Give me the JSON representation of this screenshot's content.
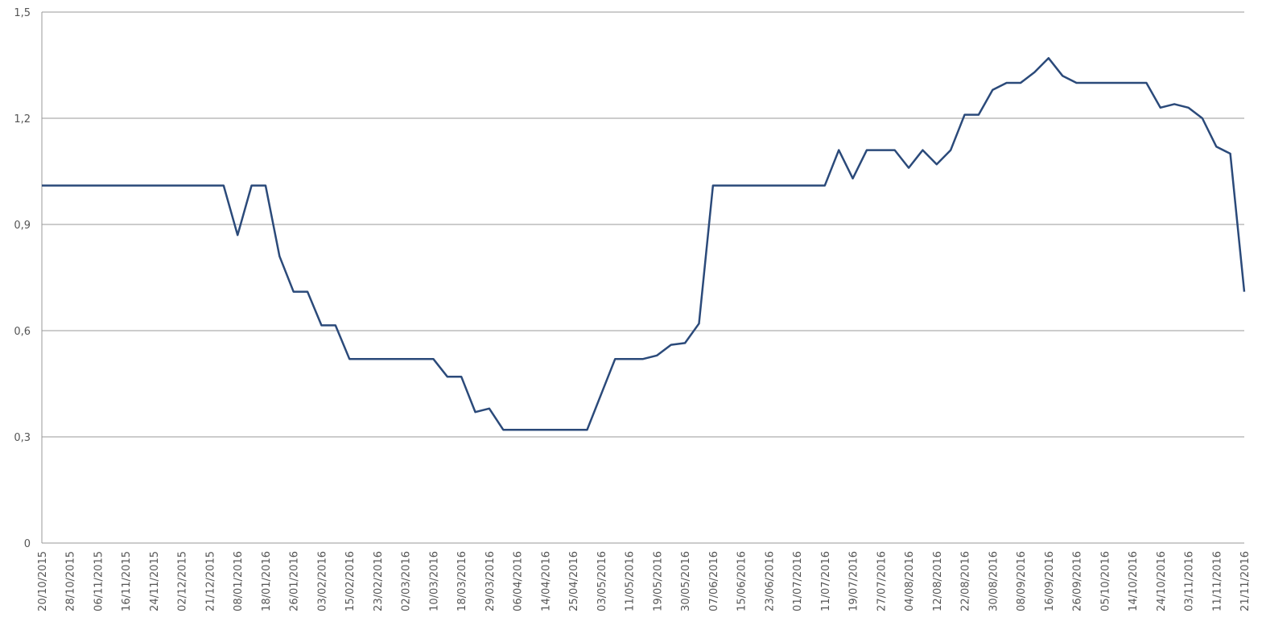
{
  "chart_data": {
    "type": "line",
    "categories": [
      "20/10/2015",
      null,
      "28/10/2015",
      null,
      "06/11/2015",
      null,
      "16/11/2015",
      null,
      "24/11/2015",
      null,
      "02/12/2015",
      null,
      "21/12/2015",
      null,
      "08/01/2016",
      null,
      "18/01/2016",
      null,
      "26/01/2016",
      null,
      "03/02/2016",
      null,
      "15/02/2016",
      null,
      "23/02/2016",
      null,
      "02/03/2016",
      null,
      "10/03/2016",
      null,
      "18/03/2016",
      null,
      "29/03/2016",
      null,
      "06/04/2016",
      null,
      "14/04/2016",
      null,
      "25/04/2016",
      null,
      "03/05/2016",
      null,
      "11/05/2016",
      null,
      "19/05/2016",
      null,
      "30/05/2016",
      null,
      "07/06/2016",
      null,
      "15/06/2016",
      null,
      "23/06/2016",
      null,
      "01/07/2016",
      null,
      "11/07/2016",
      null,
      "19/07/2016",
      null,
      "27/07/2016",
      null,
      "04/08/2016",
      null,
      "12/08/2016",
      null,
      "22/08/2016",
      null,
      "30/08/2016",
      null,
      "08/09/2016",
      null,
      "16/09/2016",
      null,
      "26/09/2016",
      null,
      "05/10/2016",
      null,
      "14/10/2016",
      null,
      "24/10/2016",
      null,
      "03/11/2016",
      null,
      "11/11/2016",
      null,
      "21/11/2016"
    ],
    "series": [
      {
        "color": "#2b4a7a",
        "values": [
          1.01,
          1.01,
          1.01,
          1.01,
          1.01,
          1.01,
          1.01,
          1.01,
          1.01,
          1.01,
          1.01,
          1.01,
          1.01,
          1.01,
          0.87,
          1.01,
          1.01,
          0.81,
          0.71,
          0.71,
          0.615,
          0.615,
          0.52,
          0.52,
          0.52,
          0.52,
          0.52,
          0.52,
          0.52,
          0.47,
          0.47,
          0.37,
          0.38,
          0.32,
          0.32,
          0.32,
          0.32,
          0.32,
          0.32,
          0.32,
          0.42,
          0.52,
          0.52,
          0.52,
          0.53,
          0.56,
          0.565,
          0.62,
          1.01,
          1.01,
          1.01,
          1.01,
          1.01,
          1.01,
          1.01,
          1.01,
          1.01,
          1.11,
          1.03,
          1.11,
          1.11,
          1.11,
          1.06,
          1.11,
          1.07,
          1.11,
          1.21,
          1.21,
          1.28,
          1.3,
          1.3,
          1.33,
          1.37,
          1.32,
          1.3,
          1.3,
          1.3,
          1.3,
          1.3,
          1.3,
          1.23,
          1.24,
          1.23,
          1.2,
          1.12,
          1.1,
          0.71
        ]
      }
    ],
    "ylim": [
      0,
      1.5
    ],
    "yticks": [
      0,
      {
        "value": 0.3,
        "label": "0,3"
      },
      {
        "value": 0.6,
        "label": "0,6"
      },
      {
        "value": 0.9,
        "label": "0,9"
      },
      {
        "value": 1.2,
        "label": "1,2"
      },
      {
        "value": 1.5,
        "label": "1,5"
      }
    ],
    "grid": true
  }
}
